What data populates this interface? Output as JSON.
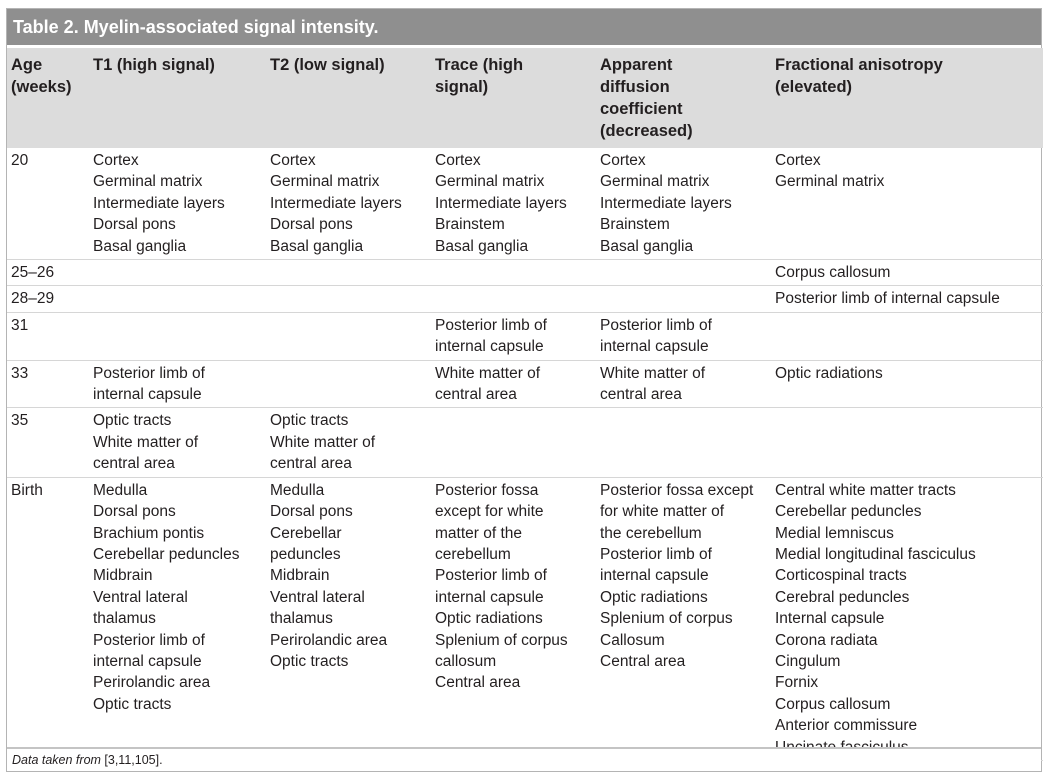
{
  "table": {
    "title": "Table 2. Myelin-associated signal intensity.",
    "headers": [
      [
        "Age",
        "(weeks)"
      ],
      [
        "T1 (high signal)"
      ],
      [
        "T2 (low signal)"
      ],
      [
        "Trace (high",
        "signal)"
      ],
      [
        "Apparent",
        "diffusion",
        "coefficient",
        "(decreased)"
      ],
      [
        "Fractional anisotropy",
        "(elevated)"
      ]
    ],
    "rows": [
      {
        "age": "20",
        "cells": [
          [
            "Cortex",
            "Germinal matrix",
            "Intermediate layers",
            "Dorsal pons",
            "Basal ganglia"
          ],
          [
            "Cortex",
            "Germinal matrix",
            "Intermediate layers",
            "Dorsal pons",
            "Basal ganglia"
          ],
          [
            "Cortex",
            "Germinal matrix",
            "Intermediate layers",
            "Brainstem",
            "Basal ganglia"
          ],
          [
            "Cortex",
            "Germinal matrix",
            "Intermediate layers",
            "Brainstem",
            "Basal ganglia"
          ],
          [
            "Cortex",
            "Germinal matrix"
          ]
        ]
      },
      {
        "age": "25–26",
        "cells": [
          [],
          [],
          [],
          [],
          [
            "Corpus callosum"
          ]
        ]
      },
      {
        "age": "28–29",
        "cells": [
          [],
          [],
          [],
          [],
          [
            "Posterior limb of internal capsule"
          ]
        ]
      },
      {
        "age": "31",
        "cells": [
          [],
          [],
          [
            "Posterior limb of",
            "internal capsule"
          ],
          [
            "Posterior limb of",
            "internal capsule"
          ],
          []
        ]
      },
      {
        "age": "33",
        "cells": [
          [
            "Posterior limb of",
            "internal capsule"
          ],
          [],
          [
            "White matter of",
            "central area"
          ],
          [
            "White matter of",
            "central area"
          ],
          [
            "Optic radiations"
          ]
        ]
      },
      {
        "age": "35",
        "cells": [
          [
            "Optic tracts",
            "White matter of",
            "central area"
          ],
          [
            "Optic tracts",
            "White matter of",
            "central area"
          ],
          [],
          [],
          []
        ]
      },
      {
        "age": "Birth",
        "cells": [
          [
            "Medulla",
            "Dorsal pons",
            "Brachium pontis",
            "Cerebellar peduncles",
            "Midbrain",
            "Ventral lateral",
            "thalamus",
            "Posterior limb of",
            "internal capsule",
            "Perirolandic area",
            "Optic tracts"
          ],
          [
            "Medulla",
            "Dorsal pons",
            "Cerebellar",
            "peduncles",
            "Midbrain",
            "Ventral lateral",
            "thalamus",
            "Perirolandic area",
            "Optic tracts"
          ],
          [
            "Posterior fossa",
            "except for white",
            "matter of the",
            "cerebellum",
            "Posterior limb of",
            "internal capsule",
            "Optic radiations",
            "Splenium of corpus",
            "callosum",
            "Central area"
          ],
          [
            "Posterior fossa except",
            "for white matter of",
            "the cerebellum",
            "Posterior limb of",
            "internal capsule",
            "Optic radiations",
            "Splenium of corpus",
            "Callosum",
            "Central area"
          ],
          [
            "Central white matter tracts",
            "Cerebellar peduncles",
            "Medial lemniscus",
            "Medial longitudinal fasciculus",
            "Corticospinal tracts",
            "Cerebral peduncles",
            "Internal capsule",
            "Corona radiata",
            "Cingulum",
            "Fornix",
            "Corpus callosum",
            "Anterior commissure",
            "Uncinate fasciculus"
          ]
        ]
      }
    ],
    "footer": {
      "prefix": "Data taken from",
      "refs": " [3,11,105]."
    }
  }
}
